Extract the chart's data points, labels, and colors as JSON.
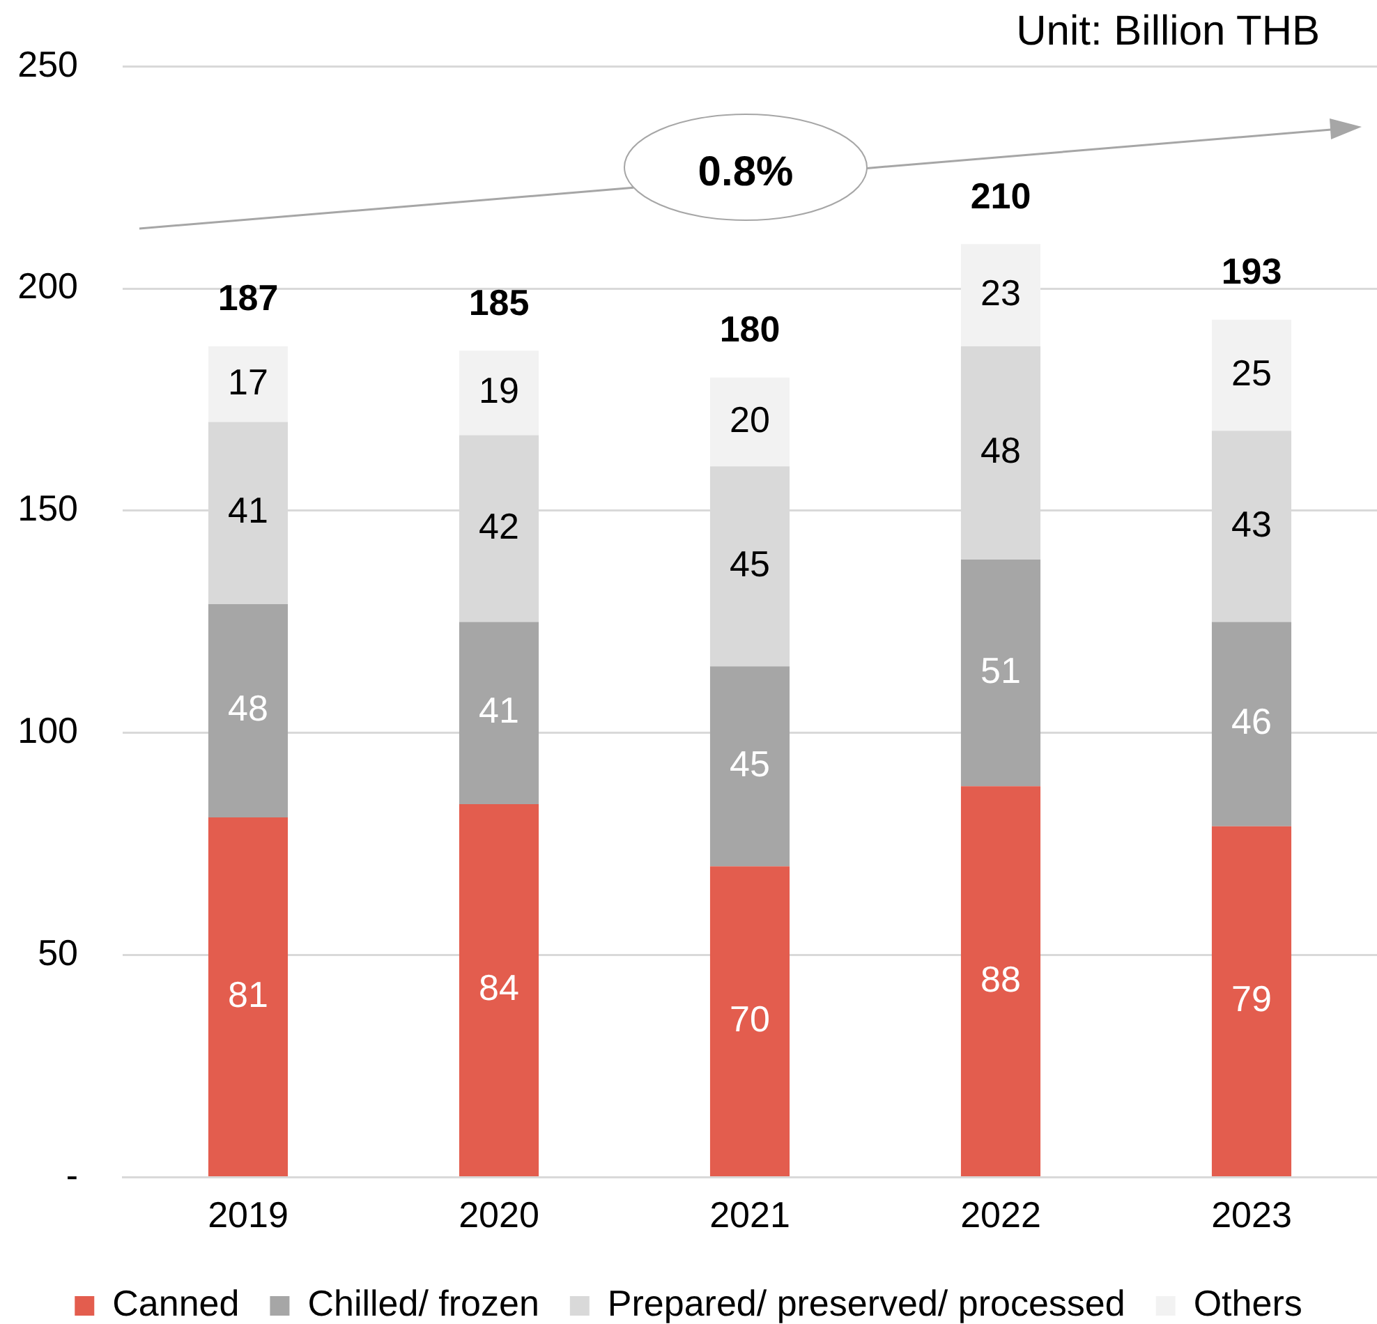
{
  "chart_data": {
    "type": "bar",
    "stacked": true,
    "categories": [
      "2019",
      "2020",
      "2021",
      "2022",
      "2023"
    ],
    "series": [
      {
        "name": "Canned",
        "color": "#e35d4e",
        "values": [
          81,
          84,
          70,
          88,
          79
        ]
      },
      {
        "name": "Chilled/ frozen",
        "color": "#a6a6a6",
        "values": [
          48,
          41,
          45,
          51,
          46
        ]
      },
      {
        "name": "Prepared/ preserved/ processed",
        "color": "#d9d9d9",
        "values": [
          41,
          42,
          45,
          48,
          43
        ]
      },
      {
        "name": "Others",
        "color": "#f2f2f2",
        "values": [
          17,
          19,
          20,
          23,
          25
        ]
      }
    ],
    "totals": [
      "187",
      "185",
      "180",
      "210",
      "193"
    ],
    "data_labels": true,
    "ylim": [
      0,
      250
    ],
    "yticks": [
      {
        "value": 0,
        "label": "-"
      },
      50,
      100,
      150,
      200,
      250
    ],
    "grid": "y",
    "legend": "bottom",
    "annotations": [
      "Unit: Billion THB",
      "0.8%"
    ]
  }
}
